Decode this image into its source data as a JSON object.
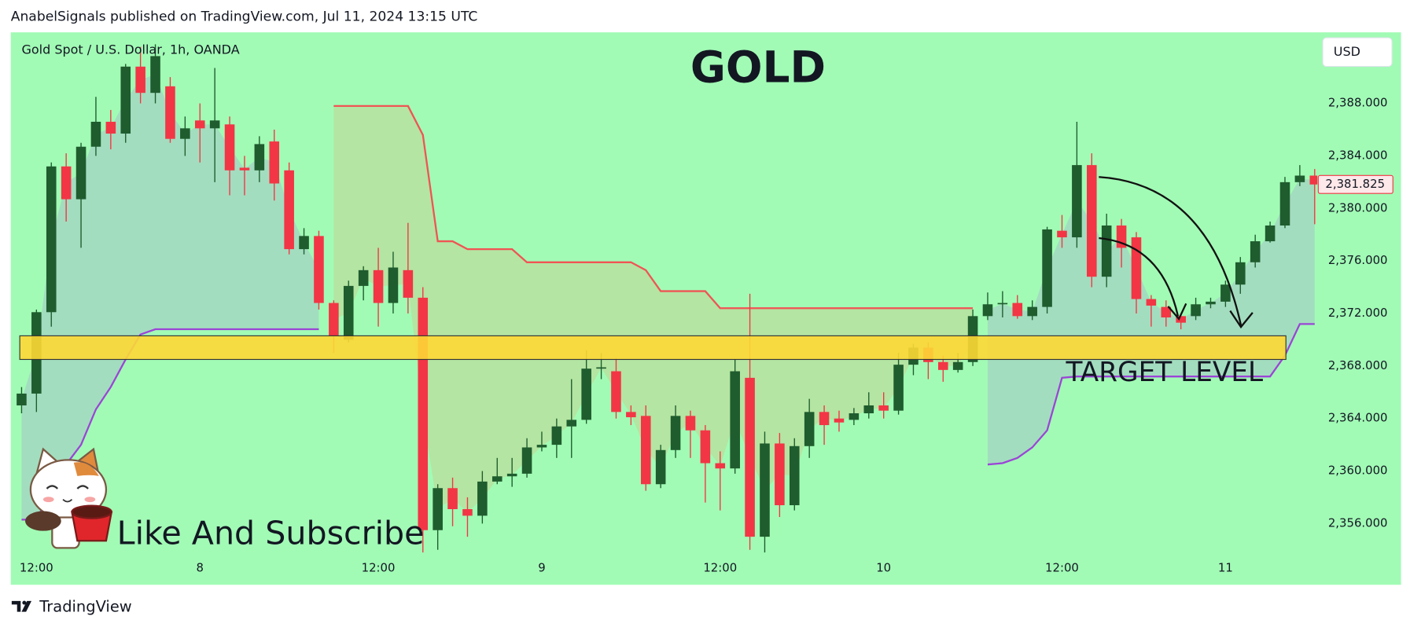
{
  "header": "AnabelSignals published on TradingView.com, Jul 11, 2024 13:15 UTC",
  "footer": "TradingView",
  "chart_data": {
    "type": "candlestick",
    "title": "GOLD",
    "subtitle": "Gold Spot / U.S. Dollar, 1h, OANDA",
    "currency": "USD",
    "annotations": [
      "TARGET LEVEL",
      "Like And Subscribe"
    ],
    "background": "#a1fbb5",
    "up_color": "#1f5c2e",
    "down_color": "#f23645",
    "grid": false,
    "categories": [
      null,
      "12:00",
      null,
      null,
      null,
      null,
      null,
      null,
      null,
      null,
      null,
      null,
      "8",
      null,
      null,
      null,
      null,
      null,
      null,
      null,
      null,
      null,
      null,
      null,
      "12:00",
      null,
      null,
      null,
      null,
      null,
      null,
      null,
      null,
      null,
      null,
      "9",
      null,
      null,
      null,
      null,
      null,
      null,
      null,
      null,
      null,
      null,
      null,
      "12:00",
      null,
      null,
      null,
      null,
      null,
      null,
      null,
      null,
      null,
      null,
      "10",
      null,
      null,
      null,
      null,
      null,
      null,
      null,
      null,
      null,
      null,
      null,
      "12:00",
      null,
      null,
      null,
      null,
      null,
      null,
      null,
      null,
      null,
      null,
      "11",
      null,
      null,
      null,
      null,
      null,
      null
    ],
    "open": [
      2365.0,
      2365.9,
      2372.1,
      2383.2,
      2380.7,
      2384.7,
      2386.6,
      2385.7,
      2390.8,
      2388.8,
      2389.3,
      2385.3,
      2386.7,
      2386.1,
      2386.4,
      2383.1,
      2382.9,
      2385.1,
      2382.9,
      2376.9,
      2377.9,
      2372.8,
      2370.0,
      2374.1,
      2375.3,
      2372.8,
      2375.3,
      2373.2,
      2355.5,
      2358.7,
      2357.1,
      2356.6,
      2359.2,
      2359.6,
      2359.8,
      2361.8,
      2362.0,
      2363.4,
      2363.9,
      2367.8,
      2367.6,
      2364.5,
      2364.2,
      2359.0,
      2361.6,
      2364.2,
      2363.1,
      2360.6,
      2360.2,
      2367.1,
      2355.0,
      2362.1,
      2357.4,
      2361.9,
      2364.5,
      2364.0,
      2363.9,
      2364.4,
      2365.0,
      2364.6,
      2368.1,
      2369.4,
      2368.3,
      2367.7,
      2368.3,
      2371.8,
      2372.7,
      2372.8,
      2371.8,
      2372.5,
      2378.3,
      2377.8,
      2383.3,
      2374.8,
      2378.7,
      2377.8,
      2373.1,
      2372.5,
      2371.8,
      2371.8,
      2372.7,
      2372.9,
      2374.2,
      2375.9,
      2377.5,
      2378.7,
      2382.0,
      2382.5
    ],
    "high": [
      2366.4,
      2372.3,
      2383.5,
      2384.2,
      2385.0,
      2388.5,
      2387.5,
      2391.0,
      2392.3,
      2392.5,
      2390.0,
      2387.0,
      2388.0,
      2390.7,
      2387.0,
      2384.0,
      2385.5,
      2386.0,
      2383.5,
      2378.5,
      2378.3,
      2373.0,
      2374.5,
      2375.6,
      2377.0,
      2376.7,
      2378.9,
      2374.0,
      2359.0,
      2359.5,
      2358.0,
      2360.0,
      2361.0,
      2361.0,
      2362.5,
      2363.0,
      2364.0,
      2367.0,
      2369.2,
      2369.0,
      2368.6,
      2365.0,
      2365.0,
      2362.0,
      2365.0,
      2364.6,
      2363.5,
      2361.5,
      2368.5,
      2373.5,
      2363.0,
      2362.9,
      2362.5,
      2365.5,
      2365.0,
      2364.6,
      2364.8,
      2366.0,
      2366.0,
      2369.0,
      2369.7,
      2369.8,
      2368.8,
      2369.0,
      2372.3,
      2373.6,
      2373.7,
      2373.4,
      2373.0,
      2378.6,
      2379.5,
      2386.6,
      2384.2,
      2379.6,
      2379.2,
      2378.2,
      2373.4,
      2373.0,
      2372.0,
      2373.2,
      2373.2,
      2374.5,
      2376.3,
      2378.0,
      2379.0,
      2382.4,
      2383.3,
      2383.0
    ],
    "low": [
      2364.4,
      2364.5,
      2371.0,
      2379.0,
      2377.0,
      2384.0,
      2384.5,
      2385.0,
      2388.0,
      2388.0,
      2385.0,
      2384.0,
      2383.5,
      2382.0,
      2381.0,
      2381.0,
      2382.0,
      2380.6,
      2376.5,
      2376.5,
      2372.3,
      2369.0,
      2369.8,
      2373.0,
      2371.0,
      2372.0,
      2372.0,
      2353.8,
      2354.0,
      2355.8,
      2355.0,
      2356.0,
      2359.0,
      2358.8,
      2359.5,
      2361.5,
      2361.0,
      2361.0,
      2363.6,
      2367.0,
      2364.0,
      2363.5,
      2358.5,
      2358.7,
      2361.0,
      2361.0,
      2357.6,
      2357.0,
      2359.8,
      2354.0,
      2353.8,
      2356.5,
      2357.0,
      2361.0,
      2362.0,
      2363.0,
      2363.5,
      2364.0,
      2364.0,
      2364.3,
      2367.3,
      2367.0,
      2366.8,
      2367.5,
      2368.0,
      2371.5,
      2371.7,
      2371.6,
      2371.5,
      2372.0,
      2377.0,
      2377.0,
      2374.0,
      2374.0,
      2375.5,
      2372.0,
      2371.0,
      2371.0,
      2370.8,
      2371.5,
      2372.4,
      2372.5,
      2373.5,
      2375.5,
      2377.4,
      2378.5,
      2381.7,
      2378.8
    ],
    "close": [
      2365.9,
      2372.1,
      2383.2,
      2380.7,
      2384.7,
      2386.6,
      2385.7,
      2390.8,
      2388.8,
      2391.6,
      2385.3,
      2386.1,
      2386.1,
      2386.7,
      2382.9,
      2382.9,
      2384.9,
      2381.9,
      2376.9,
      2377.9,
      2372.8,
      2370.3,
      2374.1,
      2375.3,
      2372.8,
      2375.5,
      2373.2,
      2355.5,
      2358.7,
      2357.1,
      2356.6,
      2359.2,
      2359.6,
      2359.8,
      2361.8,
      2362.0,
      2363.4,
      2363.9,
      2367.8,
      2367.9,
      2364.5,
      2364.1,
      2359.0,
      2361.6,
      2364.2,
      2363.1,
      2360.6,
      2360.2,
      2367.6,
      2355.0,
      2362.1,
      2357.4,
      2361.9,
      2364.5,
      2363.5,
      2363.7,
      2364.4,
      2365.0,
      2364.6,
      2368.1,
      2369.4,
      2368.3,
      2367.7,
      2368.3,
      2371.8,
      2372.7,
      2372.8,
      2371.8,
      2372.5,
      2378.4,
      2377.8,
      2383.3,
      2374.8,
      2378.7,
      2377.0,
      2373.1,
      2372.6,
      2371.7,
      2371.3,
      2372.7,
      2372.9,
      2374.2,
      2375.9,
      2377.5,
      2378.7,
      2382.0,
      2382.5,
      2381.825
    ],
    "series": [
      {
        "color": "#f05454",
        "fill": "#b6e2a0",
        "values": [
          null,
          null,
          null,
          null,
          null,
          null,
          null,
          null,
          null,
          null,
          null,
          null,
          null,
          null,
          null,
          null,
          null,
          null,
          null,
          null,
          null,
          2387.8,
          2387.8,
          2387.8,
          2387.8,
          2387.8,
          2387.8,
          2385.6,
          2377.5,
          2377.5,
          2376.9,
          2376.9,
          2376.9,
          2376.9,
          2375.9,
          2375.9,
          2375.9,
          2375.9,
          2375.9,
          2375.9,
          2375.9,
          2375.9,
          2375.3,
          2373.7,
          2373.7,
          2373.7,
          2373.7,
          2372.4,
          2372.4,
          2372.4,
          2372.4,
          2372.4,
          2372.4,
          2372.4,
          2372.4,
          2372.4,
          2372.4,
          2372.4,
          2372.4,
          2372.4,
          2372.4,
          2372.4,
          2372.4,
          2372.4,
          2372.4,
          null,
          null,
          null,
          null,
          null,
          null,
          null,
          null,
          null,
          null,
          null,
          null,
          null,
          null,
          null,
          null,
          null,
          null,
          null,
          null,
          null,
          null,
          null
        ]
      },
      {
        "color": "#9b45d6",
        "fill": "#a3d9c0",
        "values": [
          2356.3,
          2356.3,
          2358.5,
          2360.5,
          2362.0,
          2364.7,
          2366.4,
          2368.5,
          2370.4,
          2370.8,
          2370.8,
          2370.8,
          2370.8,
          2370.8,
          2370.8,
          2370.8,
          2370.8,
          2370.8,
          2370.8,
          2370.8,
          2370.8,
          null,
          null,
          null,
          null,
          null,
          null,
          null,
          null,
          null,
          null,
          null,
          null,
          null,
          null,
          null,
          null,
          null,
          null,
          null,
          null,
          null,
          null,
          null,
          null,
          null,
          null,
          null,
          null,
          null,
          null,
          null,
          null,
          null,
          null,
          null,
          null,
          null,
          null,
          null,
          null,
          null,
          null,
          null,
          null,
          2360.5,
          2360.6,
          2361.0,
          2361.8,
          2363.1,
          2367.1,
          2367.2,
          2367.2,
          2367.2,
          2367.2,
          2367.2,
          2367.2,
          2367.2,
          2367.2,
          2367.2,
          2367.2,
          2367.2,
          2367.2,
          2367.2,
          2367.2,
          2368.8,
          2371.2,
          2371.2
        ]
      }
    ],
    "zone": {
      "low": 2368.5,
      "high": 2370.3,
      "color": "#fdd835"
    },
    "last_price": {
      "value": 2381.825,
      "label": "2,381.825"
    },
    "ylim": [
      2351.34,
      2393.41
    ],
    "yticks": [
      {
        "value": 2356,
        "label": "2,356.000"
      },
      {
        "value": 2360,
        "label": "2,360.000"
      },
      {
        "value": 2364,
        "label": "2,364.000"
      },
      {
        "value": 2368,
        "label": "2,368.000"
      },
      {
        "value": 2372,
        "label": "2,372.000"
      },
      {
        "value": 2376,
        "label": "2,376.000"
      },
      {
        "value": 2380,
        "label": "2,380.000"
      },
      {
        "value": 2384,
        "label": "2,384.000"
      },
      {
        "value": 2388,
        "label": "2,388.000"
      }
    ]
  }
}
